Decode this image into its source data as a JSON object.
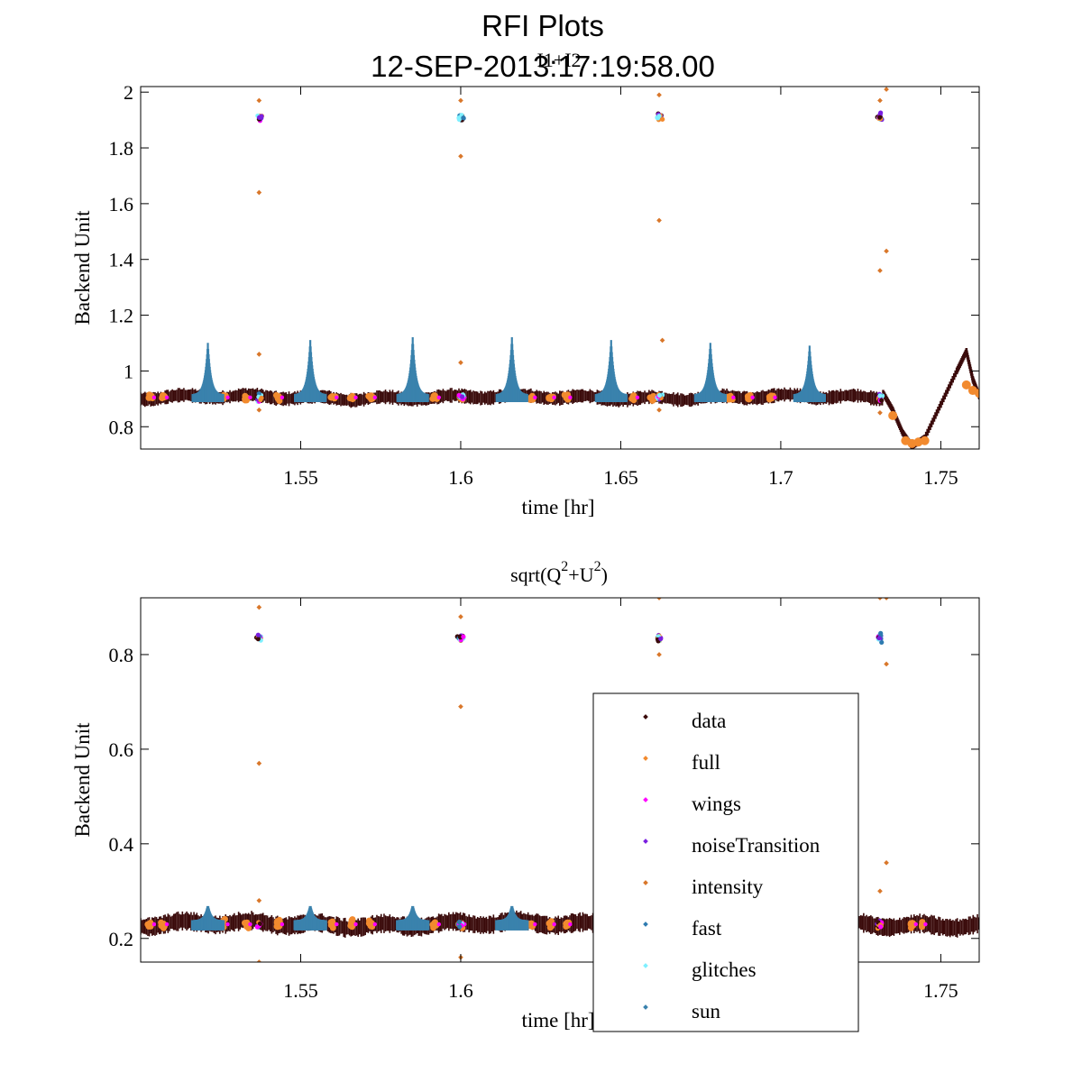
{
  "figure": {
    "title": "RFI Plots",
    "datetime": "12-SEP-2013:17:19:58.00"
  },
  "legend": {
    "location": "inside-lower-right of bottom panel",
    "items": [
      {
        "label": "data",
        "color": "#3a0a0a"
      },
      {
        "label": "full",
        "color": "#f28a2e"
      },
      {
        "label": "wings",
        "color": "#ff00ff"
      },
      {
        "label": "noiseTransition",
        "color": "#7a1fe0"
      },
      {
        "label": "intensity",
        "color": "#d9772a"
      },
      {
        "label": "fast",
        "color": "#2e7bb0"
      },
      {
        "label": "glitches",
        "color": "#7ff0ff"
      },
      {
        "label": "sun",
        "color": "#3a82ad"
      }
    ]
  },
  "chart_data": [
    {
      "type": "scatter",
      "title": "I1+I2",
      "xlabel": "time [hr]",
      "ylabel": "Backend Unit",
      "xlim": [
        1.5,
        1.762
      ],
      "ylim": [
        0.72,
        2.02
      ],
      "xticks": [
        1.55,
        1.6,
        1.65,
        1.7,
        1.75
      ],
      "xtick_labels": [
        "1.55",
        "1.6",
        "1.65",
        "1.7",
        "1.75"
      ],
      "yticks": [
        0.8,
        1.0,
        1.2,
        1.4,
        1.6,
        1.8,
        2.0
      ],
      "ytick_labels": [
        "0.8",
        "1",
        "1.2",
        "1.4",
        "1.6",
        "1.8",
        "2"
      ],
      "baseline": 0.905,
      "noise_band": 0.018,
      "calibration_times": [
        1.537,
        1.6,
        1.662,
        1.731
      ],
      "calibration_level": 1.91,
      "calibration_outliers": [
        [
          1.537,
          1.97
        ],
        [
          1.537,
          1.64
        ],
        [
          1.537,
          1.06
        ],
        [
          1.537,
          0.86
        ],
        [
          1.6,
          1.97
        ],
        [
          1.6,
          1.77
        ],
        [
          1.6,
          1.03
        ],
        [
          1.662,
          1.99
        ],
        [
          1.662,
          1.54
        ],
        [
          1.663,
          1.11
        ],
        [
          1.662,
          0.86
        ],
        [
          1.731,
          1.97
        ],
        [
          1.733,
          2.01
        ],
        [
          1.733,
          1.43
        ],
        [
          1.731,
          1.36
        ],
        [
          1.731,
          0.85
        ]
      ],
      "sun_peaks": [
        [
          1.521,
          1.09
        ],
        [
          1.553,
          1.1
        ],
        [
          1.585,
          1.11
        ],
        [
          1.616,
          1.11
        ],
        [
          1.647,
          1.1
        ],
        [
          1.678,
          1.09
        ],
        [
          1.709,
          1.08
        ]
      ],
      "full_clusters": [
        1.503,
        1.507,
        1.526,
        1.533,
        1.543,
        1.56,
        1.566,
        1.572,
        1.592,
        1.6,
        1.622,
        1.628,
        1.633,
        1.654,
        1.66,
        1.684,
        1.69,
        1.697
      ],
      "tail_curve": [
        [
          1.732,
          0.92
        ],
        [
          1.735,
          0.86
        ],
        [
          1.738,
          0.78
        ],
        [
          1.741,
          0.73
        ],
        [
          1.745,
          0.76
        ],
        [
          1.75,
          0.88
        ],
        [
          1.755,
          1.0
        ],
        [
          1.758,
          1.07
        ],
        [
          1.76,
          0.97
        ],
        [
          1.762,
          0.91
        ]
      ]
    },
    {
      "type": "scatter",
      "title": "sqrt(Q^2+U^2)",
      "title_base": "sqrt(Q",
      "title_sup1": "2",
      "title_mid": "+U",
      "title_sup2": "2",
      "title_end": ")",
      "xlabel": "time [hr]",
      "ylabel": "Backend Unit",
      "xlim": [
        1.5,
        1.762
      ],
      "ylim": [
        0.15,
        0.92
      ],
      "xticks": [
        1.55,
        1.6,
        1.65,
        1.7,
        1.75
      ],
      "xtick_labels": [
        "1.55",
        "1.6",
        "1.65",
        "1.7",
        "1.75"
      ],
      "yticks": [
        0.2,
        0.4,
        0.6,
        0.8
      ],
      "ytick_labels": [
        "0.2",
        "0.4",
        "0.6",
        "0.8"
      ],
      "baseline": 0.23,
      "noise_band": 0.014,
      "calibration_times": [
        1.537,
        1.6,
        1.662,
        1.731
      ],
      "calibration_level": 0.835,
      "calibration_outliers": [
        [
          1.537,
          0.9
        ],
        [
          1.537,
          0.57
        ],
        [
          1.537,
          0.28
        ],
        [
          1.537,
          0.15
        ],
        [
          1.6,
          0.88
        ],
        [
          1.6,
          0.69
        ],
        [
          1.6,
          0.16
        ],
        [
          1.662,
          0.92
        ],
        [
          1.662,
          0.8
        ],
        [
          1.731,
          0.92
        ],
        [
          1.733,
          0.92
        ],
        [
          1.733,
          0.36
        ],
        [
          1.731,
          0.3
        ],
        [
          1.733,
          0.78
        ]
      ],
      "sun_peaks": [
        [
          1.521,
          0.26
        ],
        [
          1.553,
          0.26
        ],
        [
          1.585,
          0.26
        ],
        [
          1.616,
          0.26
        ]
      ],
      "full_clusters": [
        1.503,
        1.507,
        1.526,
        1.533,
        1.543,
        1.56,
        1.566,
        1.572,
        1.592,
        1.6,
        1.622,
        1.628,
        1.633,
        1.741,
        1.744
      ]
    }
  ]
}
